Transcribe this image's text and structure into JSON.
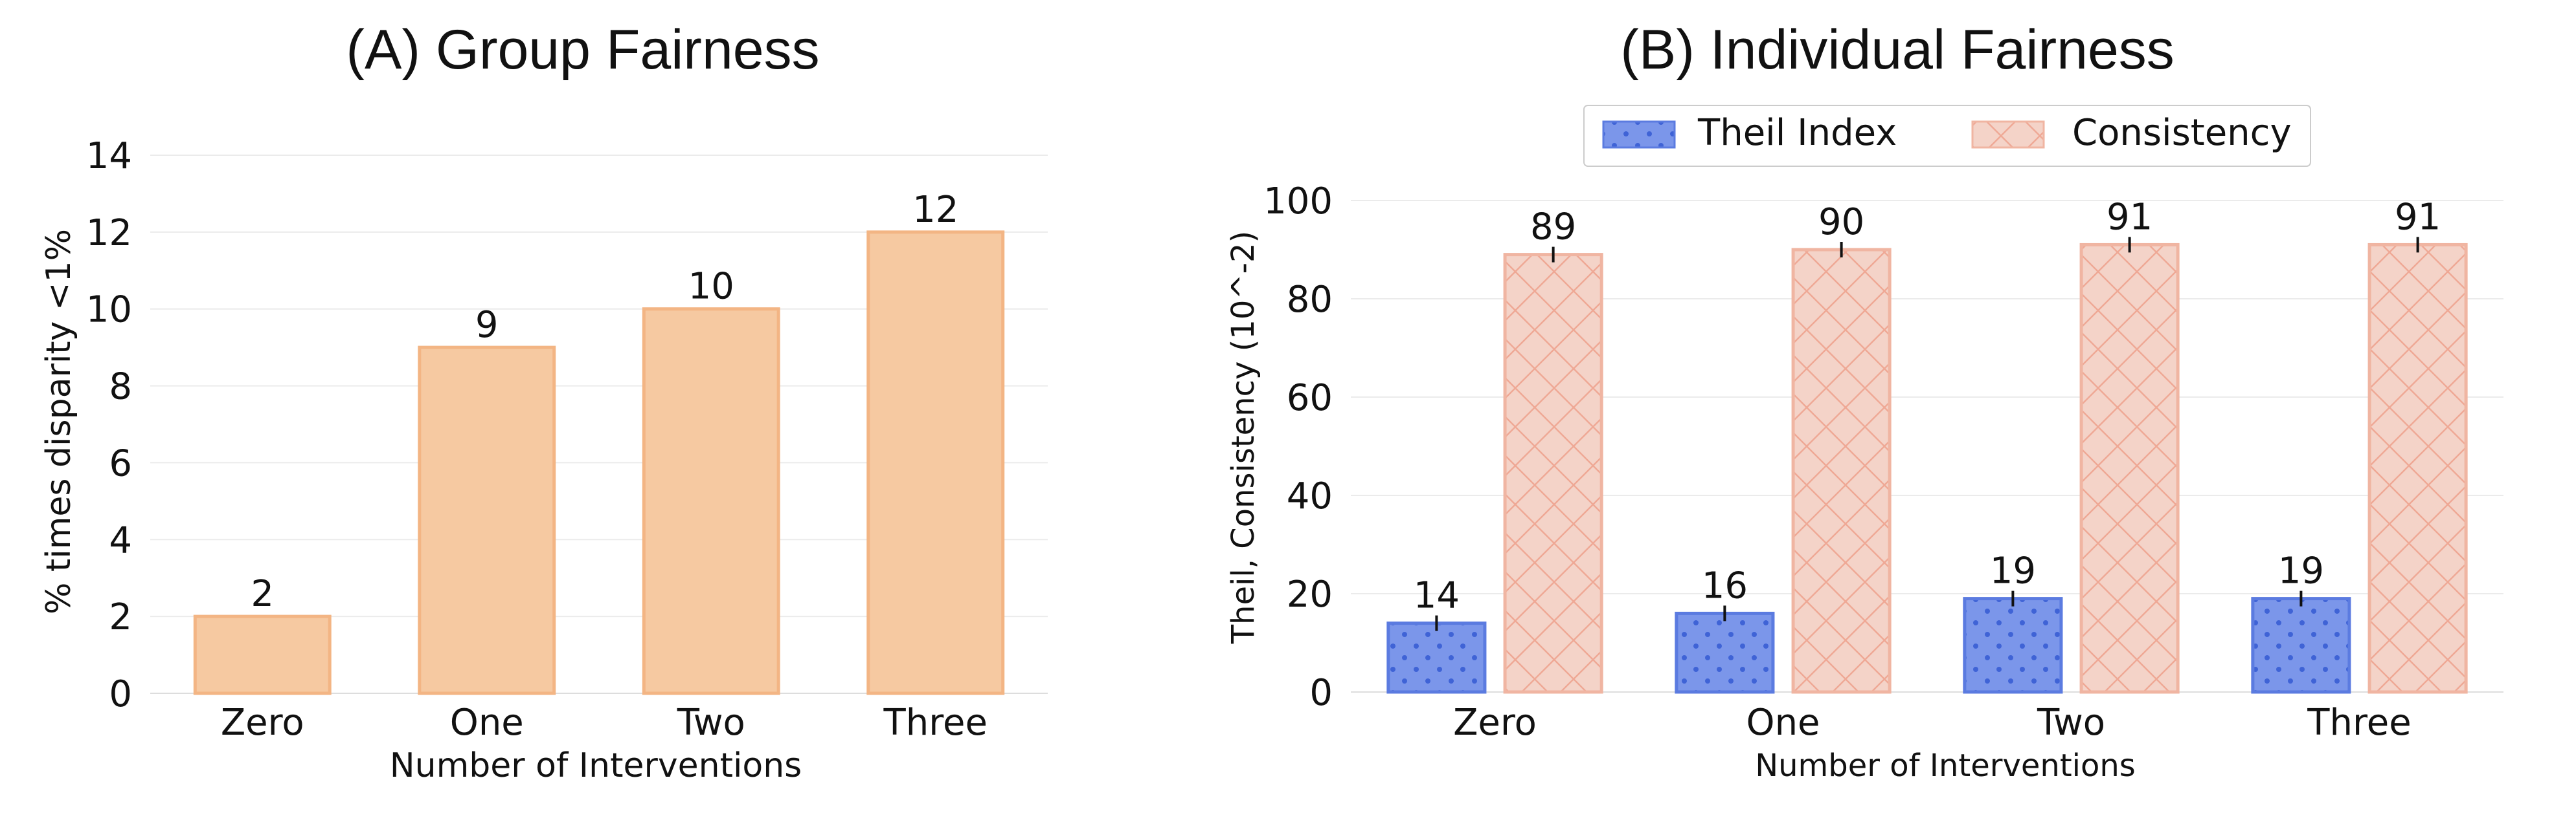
{
  "chart_data": [
    {
      "type": "bar",
      "title": "(A) Group Fairness",
      "xlabel": "Number of Interventions",
      "ylabel": "% times disparity <1%",
      "categories": [
        "Zero",
        "One",
        "Two",
        "Three"
      ],
      "values": [
        2,
        9,
        10,
        12
      ],
      "data_labels": [
        "2",
        "9",
        "10",
        "12"
      ],
      "ylim": [
        0,
        14
      ],
      "yticks": [
        0,
        2,
        4,
        6,
        8,
        10,
        12,
        14
      ],
      "grid": true,
      "bar_color": "#f6c9a1",
      "bar_edge_color": "#f3b584"
    },
    {
      "type": "bar",
      "title": "(B) Individual Fairness",
      "xlabel": "Number of Interventions",
      "ylabel": "Theil, Consistency (10^-2)",
      "categories": [
        "Zero",
        "One",
        "Two",
        "Three"
      ],
      "series": [
        {
          "name": "Theil Index",
          "values": [
            14,
            16,
            19,
            19
          ],
          "data_labels": [
            "14",
            "16",
            "19",
            "19"
          ],
          "color": "#7b96ea",
          "edge_color": "#5b7be0",
          "dot_color": "#3f63d6",
          "pattern": "dots"
        },
        {
          "name": "Consistency",
          "values": [
            89,
            90,
            91,
            91
          ],
          "data_labels": [
            "89",
            "90",
            "91",
            "91"
          ],
          "color": "#f4d3c8",
          "edge_color": "#f0b5a2",
          "pattern": "crosshatch"
        }
      ],
      "ylim": [
        0,
        100
      ],
      "yticks": [
        0,
        20,
        40,
        60,
        80,
        100
      ],
      "grid": true,
      "legend": "top-center",
      "error_bar_color": "#111111"
    }
  ]
}
